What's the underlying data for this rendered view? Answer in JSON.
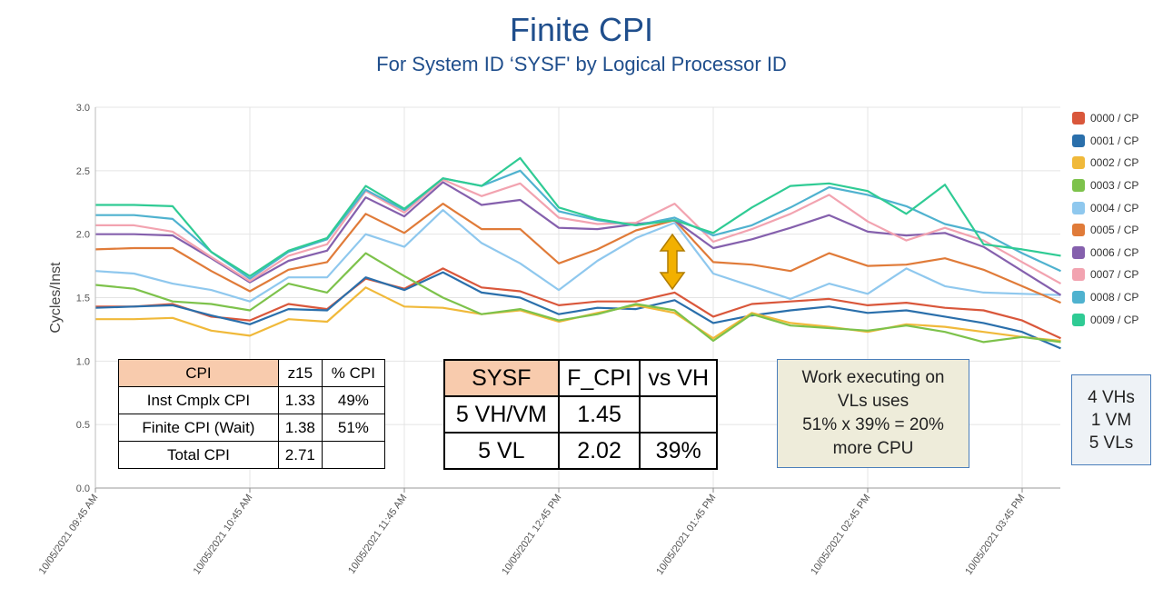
{
  "chart_data": {
    "type": "line",
    "title": "Finite CPI",
    "subtitle": "For System ID ‘SYSF' by Logical Processor ID",
    "ylabel": "Cycles/Inst",
    "xlabel": "",
    "ylim": [
      0,
      3.0
    ],
    "yticks": [
      "0.0",
      "0.5",
      "1.0",
      "1.5",
      "2.0",
      "2.5",
      "3.0"
    ],
    "x_tick_labels": [
      "10/05/2021 09:45 AM",
      "10/05/2021 10:45 AM",
      "10/05/2021 11:45 AM",
      "10/05/2021 12:45 PM",
      "10/05/2021 01:45 PM",
      "10/05/2021 02:45 PM",
      "10/05/2021 03:45 PM"
    ],
    "x": [
      "09:45",
      "10:00",
      "10:15",
      "10:30",
      "10:45",
      "11:00",
      "11:15",
      "11:30",
      "11:45",
      "12:00",
      "12:15",
      "12:30",
      "12:45",
      "13:00",
      "13:15",
      "13:30",
      "13:45",
      "14:00",
      "14:15",
      "14:30",
      "14:45",
      "15:00",
      "15:15",
      "15:30",
      "15:45",
      "16:00"
    ],
    "grid": true,
    "legend_position": "right",
    "series": [
      {
        "name": "0000 / CP",
        "color": "#d9573b",
        "values": [
          1.43,
          1.43,
          1.45,
          1.35,
          1.32,
          1.45,
          1.41,
          1.65,
          1.57,
          1.73,
          1.58,
          1.55,
          1.44,
          1.47,
          1.47,
          1.54,
          1.35,
          1.45,
          1.47,
          1.49,
          1.44,
          1.46,
          1.42,
          1.4,
          1.32,
          1.18
        ]
      },
      {
        "name": "0001 / CP",
        "color": "#2a6fab",
        "values": [
          1.42,
          1.43,
          1.44,
          1.36,
          1.29,
          1.41,
          1.4,
          1.66,
          1.56,
          1.7,
          1.54,
          1.5,
          1.37,
          1.42,
          1.41,
          1.48,
          1.3,
          1.36,
          1.4,
          1.43,
          1.38,
          1.4,
          1.35,
          1.3,
          1.23,
          1.1
        ]
      },
      {
        "name": "0002 / CP",
        "color": "#f0b93a",
        "values": [
          1.33,
          1.33,
          1.34,
          1.24,
          1.2,
          1.33,
          1.31,
          1.58,
          1.43,
          1.42,
          1.37,
          1.4,
          1.31,
          1.38,
          1.44,
          1.38,
          1.18,
          1.38,
          1.3,
          1.27,
          1.23,
          1.29,
          1.27,
          1.23,
          1.19,
          1.16
        ]
      },
      {
        "name": "0003 / CP",
        "color": "#7dc24b",
        "values": [
          1.6,
          1.57,
          1.47,
          1.45,
          1.4,
          1.61,
          1.54,
          1.85,
          1.67,
          1.5,
          1.37,
          1.41,
          1.32,
          1.37,
          1.45,
          1.4,
          1.16,
          1.37,
          1.28,
          1.26,
          1.24,
          1.28,
          1.23,
          1.15,
          1.19,
          1.15
        ]
      },
      {
        "name": "0004 / CP",
        "color": "#8fc8ee",
        "values": [
          1.71,
          1.69,
          1.61,
          1.56,
          1.47,
          1.66,
          1.66,
          2.0,
          1.9,
          2.19,
          1.93,
          1.77,
          1.56,
          1.79,
          1.97,
          2.09,
          1.69,
          1.59,
          1.49,
          1.61,
          1.53,
          1.73,
          1.59,
          1.54,
          1.53,
          1.52
        ]
      },
      {
        "name": "0005 / CP",
        "color": "#e07b39",
        "values": [
          1.88,
          1.89,
          1.89,
          1.71,
          1.55,
          1.72,
          1.78,
          2.16,
          2.01,
          2.24,
          2.04,
          2.04,
          1.77,
          1.88,
          2.03,
          2.11,
          1.78,
          1.76,
          1.71,
          1.85,
          1.75,
          1.76,
          1.81,
          1.72,
          1.59,
          1.46
        ]
      },
      {
        "name": "0006 / CP",
        "color": "#8560ad",
        "values": [
          2.0,
          2.0,
          1.99,
          1.81,
          1.62,
          1.79,
          1.87,
          2.29,
          2.14,
          2.41,
          2.23,
          2.27,
          2.05,
          2.04,
          2.08,
          2.11,
          1.89,
          1.96,
          2.05,
          2.15,
          2.02,
          1.99,
          2.01,
          1.9,
          1.71,
          1.52
        ]
      },
      {
        "name": "0007 / CP",
        "color": "#f2a3b0",
        "values": [
          2.07,
          2.07,
          2.02,
          1.82,
          1.63,
          1.83,
          1.92,
          2.34,
          2.17,
          2.43,
          2.3,
          2.4,
          2.13,
          2.08,
          2.09,
          2.24,
          1.94,
          2.04,
          2.16,
          2.31,
          2.1,
          1.95,
          2.05,
          1.95,
          1.78,
          1.61
        ]
      },
      {
        "name": "0008 / CP",
        "color": "#4fb2cf",
        "values": [
          2.15,
          2.15,
          2.12,
          1.86,
          1.65,
          1.86,
          1.96,
          2.35,
          2.19,
          2.44,
          2.38,
          2.5,
          2.18,
          2.11,
          2.07,
          2.13,
          1.99,
          2.07,
          2.21,
          2.37,
          2.31,
          2.22,
          2.08,
          2.01,
          1.85,
          1.71
        ]
      },
      {
        "name": "0009 / CP",
        "color": "#2fcb94",
        "values": [
          2.23,
          2.23,
          2.22,
          1.86,
          1.67,
          1.87,
          1.97,
          2.38,
          2.2,
          2.44,
          2.38,
          2.6,
          2.21,
          2.12,
          2.07,
          2.11,
          2.01,
          2.21,
          2.38,
          2.4,
          2.34,
          2.16,
          2.39,
          1.92,
          1.88,
          1.83
        ]
      }
    ]
  },
  "cpi_table": {
    "header": [
      "CPI",
      "z15",
      "% CPI"
    ],
    "rows": [
      [
        "Inst Cmplx CPI",
        "1.33",
        "49%"
      ],
      [
        "Finite CPI (Wait)",
        "1.38",
        "51%"
      ],
      [
        "Total CPI",
        "2.71",
        ""
      ]
    ]
  },
  "sysf_table": {
    "header": [
      "SYSF",
      "F_CPI",
      "vs VH"
    ],
    "rows": [
      [
        "5 VH/VM",
        "1.45",
        ""
      ],
      [
        "5 VL",
        "2.02",
        "39%"
      ]
    ]
  },
  "note": {
    "lines": [
      "Work executing on",
      "VLs uses",
      "51% x 39% = 20%",
      "more CPU"
    ]
  },
  "vh_box": {
    "lines": [
      "4 VHs",
      "1 VM",
      "5 VLs"
    ]
  },
  "arrow_color": "#f2b000"
}
